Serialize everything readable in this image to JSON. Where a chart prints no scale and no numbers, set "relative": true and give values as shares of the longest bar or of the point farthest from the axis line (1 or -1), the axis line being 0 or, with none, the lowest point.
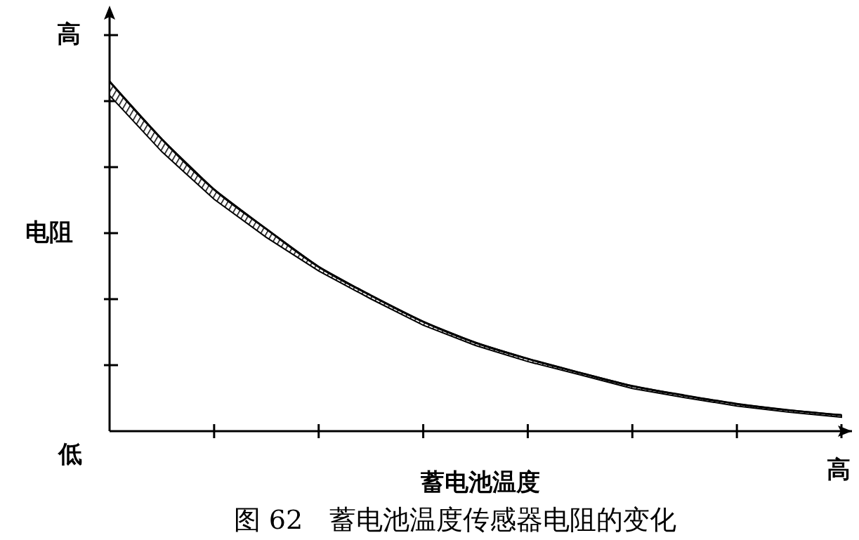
{
  "chart_data": {
    "type": "line",
    "title": "图 62　蓄电池温度传感器电阻的变化",
    "xlabel": "蓄电池温度",
    "ylabel": "电阻",
    "annotations": [
      "高",
      "低",
      "高"
    ],
    "relative": true,
    "categories": [
      null,
      null,
      null,
      null,
      null,
      null,
      null,
      null,
      null,
      null,
      null,
      null,
      null,
      null,
      null
    ],
    "series": [
      {
        "color": "#000000",
        "values": [
          1,
          0.835,
          0.691,
          0.578,
          0.47,
          0.388,
          0.313,
          0.253,
          0.207,
          0.167,
          0.129,
          0.102,
          0.078,
          0.06,
          0.046
        ],
        "upper": [
          1,
          0.835,
          0.691,
          0.578,
          0.47,
          0.388,
          0.313,
          0.253,
          0.207,
          0.167,
          0.129,
          0.102,
          0.078,
          0.06,
          0.046
        ],
        "lower": [
          0.96,
          0.799,
          0.663,
          0.554,
          0.458,
          0.378,
          0.303,
          0.245,
          0.199,
          0.161,
          0.122,
          0.096,
          0.072,
          0.054,
          0.04
        ]
      }
    ],
    "marker": "none",
    "line_style": "solid"
  }
}
